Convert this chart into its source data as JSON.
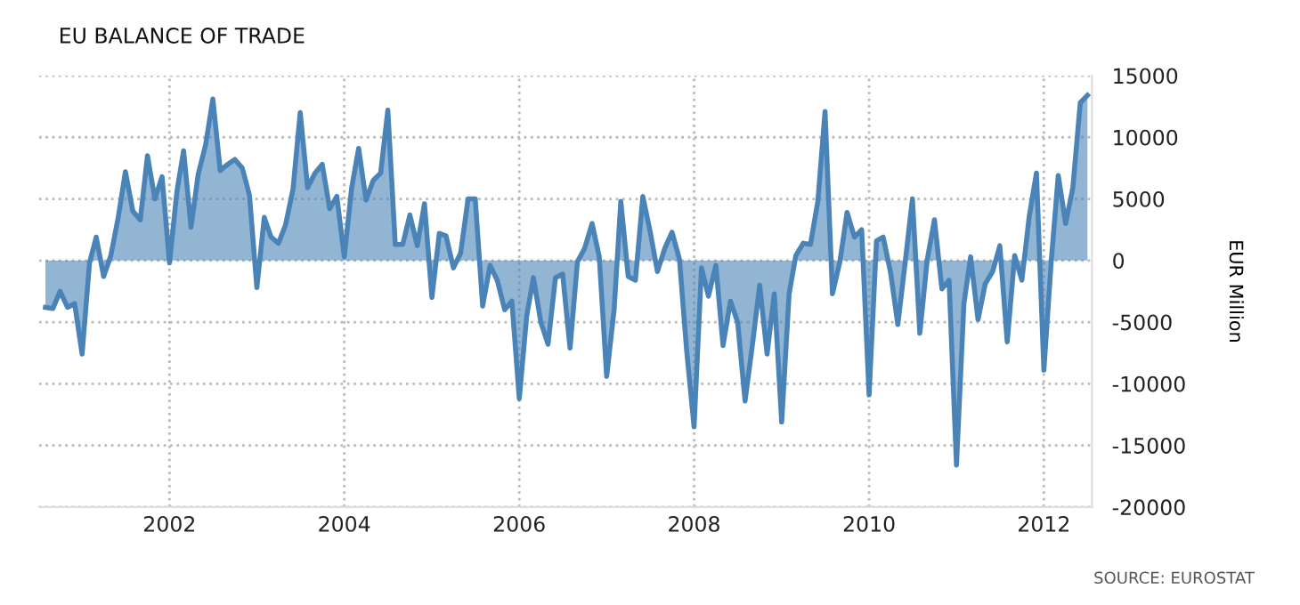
{
  "chart_data": {
    "type": "area",
    "title": "EU BALANCE OF TRADE",
    "ylabel": "EUR Million",
    "annotations": [
      "SOURCE: EUROSTAT"
    ],
    "x": [
      "2000-08",
      "2000-09",
      "2000-10",
      "2000-11",
      "2000-12",
      "2001-01",
      "2001-02",
      "2001-03",
      "2001-04",
      "2001-05",
      "2001-06",
      "2001-07",
      "2001-08",
      "2001-09",
      "2001-10",
      "2001-11",
      "2001-12",
      "2002-01",
      "2002-02",
      "2002-03",
      "2002-04",
      "2002-05",
      "2002-06",
      "2002-07",
      "2002-08",
      "2002-09",
      "2002-10",
      "2002-11",
      "2002-12",
      "2003-01",
      "2003-02",
      "2003-03",
      "2003-04",
      "2003-05",
      "2003-06",
      "2003-07",
      "2003-08",
      "2003-09",
      "2003-10",
      "2003-11",
      "2003-12",
      "2004-01",
      "2004-02",
      "2004-03",
      "2004-04",
      "2004-05",
      "2004-06",
      "2004-07",
      "2004-08",
      "2004-09",
      "2004-10",
      "2004-11",
      "2004-12",
      "2005-01",
      "2005-02",
      "2005-03",
      "2005-04",
      "2005-05",
      "2005-06",
      "2005-07",
      "2005-08",
      "2005-09",
      "2005-10",
      "2005-11",
      "2005-12",
      "2006-01",
      "2006-02",
      "2006-03",
      "2006-04",
      "2006-05",
      "2006-06",
      "2006-07",
      "2006-08",
      "2006-09",
      "2006-10",
      "2006-11",
      "2006-12",
      "2007-01",
      "2007-02",
      "2007-03",
      "2007-04",
      "2007-05",
      "2007-06",
      "2007-07",
      "2007-08",
      "2007-09",
      "2007-10",
      "2007-11",
      "2007-12",
      "2008-01",
      "2008-02",
      "2008-03",
      "2008-04",
      "2008-05",
      "2008-06",
      "2008-07",
      "2008-08",
      "2008-09",
      "2008-10",
      "2008-11",
      "2008-12",
      "2009-01",
      "2009-02",
      "2009-03",
      "2009-04",
      "2009-05",
      "2009-06",
      "2009-07",
      "2009-08",
      "2009-09",
      "2009-10",
      "2009-11",
      "2009-12",
      "2010-01",
      "2010-02",
      "2010-03",
      "2010-04",
      "2010-05",
      "2010-06",
      "2010-07",
      "2010-08",
      "2010-09",
      "2010-10",
      "2010-11",
      "2010-12",
      "2011-01",
      "2011-02",
      "2011-03",
      "2011-04",
      "2011-05",
      "2011-06",
      "2011-07",
      "2011-08",
      "2011-09",
      "2011-10",
      "2011-11",
      "2011-12",
      "2012-01",
      "2012-02",
      "2012-03",
      "2012-04",
      "2012-05",
      "2012-06",
      "2012-07"
    ],
    "series": [
      {
        "color": "#4a83b8",
        "values": [
          -3800,
          -3900,
          -2500,
          -3800,
          -3500,
          -7600,
          -200,
          1900,
          -1300,
          400,
          3500,
          7200,
          4000,
          3300,
          8500,
          5000,
          6800,
          -200,
          5600,
          8900,
          2700,
          7000,
          9400,
          13100,
          7300,
          7800,
          8200,
          7500,
          5300,
          -2200,
          3500,
          1900,
          1400,
          2900,
          5800,
          12000,
          5900,
          7100,
          7800,
          4200,
          5200,
          300,
          5900,
          9100,
          4900,
          6500,
          7100,
          12200,
          1300,
          1300,
          3700,
          1200,
          4600,
          -3000,
          2200,
          2000,
          -600,
          600,
          5000,
          5000,
          -3700,
          -400,
          -1600,
          -4000,
          -3300,
          -11200,
          -4500,
          -1400,
          -5000,
          -6800,
          -1400,
          -1100,
          -7100,
          -100,
          1000,
          3000,
          300,
          -9400,
          -4000,
          4800,
          -1300,
          -1600,
          5200,
          2400,
          -900,
          1000,
          2300,
          100,
          -7300,
          -13500,
          -600,
          -2900,
          -400,
          -6900,
          -3300,
          -5000,
          -11400,
          -6800,
          -2000,
          -7600,
          -2700,
          -13100,
          -2700,
          400,
          1400,
          1300,
          4800,
          12100,
          -2700,
          -100,
          3900,
          1900,
          2500,
          -10900,
          1600,
          1900,
          -1000,
          -5200,
          -100,
          5000,
          -5900,
          100,
          3300,
          -2300,
          -1600,
          -16600,
          -3500,
          300,
          -4800,
          -1900,
          -900,
          1200,
          -6600,
          400,
          -1600,
          3600,
          7100,
          -8900,
          0,
          6900,
          3000,
          5900,
          12800,
          13400
        ]
      }
    ],
    "xlim": [
      "2000-07-05",
      "2012-07-20"
    ],
    "xticks": [
      {
        "value": "2002-01-01",
        "label": "2002"
      },
      {
        "value": "2004-01-01",
        "label": "2004"
      },
      {
        "value": "2006-01-01",
        "label": "2006"
      },
      {
        "value": "2008-01-01",
        "label": "2008"
      },
      {
        "value": "2010-01-01",
        "label": "2010"
      },
      {
        "value": "2012-01-01",
        "label": "2012"
      }
    ],
    "ylim": [
      -20000,
      15000
    ],
    "yticks": [
      -20000,
      -15000,
      -10000,
      -5000,
      0,
      5000,
      10000,
      15000
    ],
    "grid": true,
    "line_style": "solid",
    "marker": "none"
  }
}
